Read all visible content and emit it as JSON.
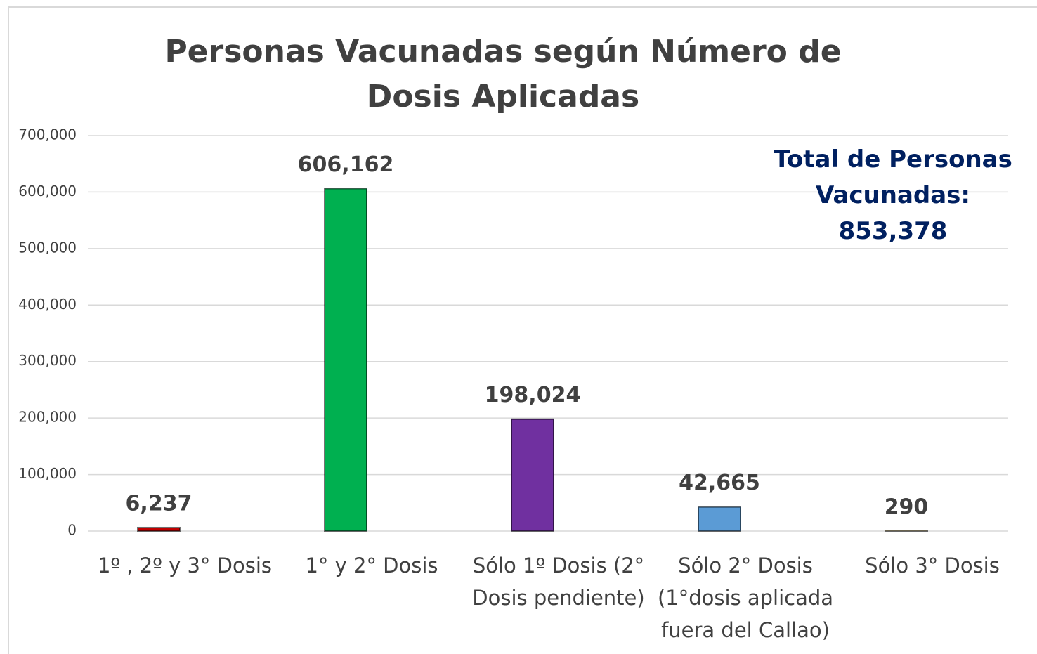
{
  "chart_data": {
    "type": "bar",
    "title": "Personas Vacunadas según  Número de Dosis Aplicadas",
    "annotation": "Total de Personas Vacunadas: 853,378",
    "categories": [
      "1º , 2º y 3° Dosis",
      "1° y 2° Dosis",
      "Sólo 1º Dosis (2° Dosis pendiente)",
      "Sólo 2° Dosis (1°dosis aplicada fuera del Callao)",
      "Sólo 3° Dosis"
    ],
    "values": [
      6237,
      606162,
      198024,
      42665,
      290
    ],
    "value_labels": [
      "6,237",
      "606,162",
      "198,024",
      "42,665",
      "290"
    ],
    "colors": [
      "#c00000",
      "#00b050",
      "#7030a0",
      "#5b9bd5",
      "#ffc000"
    ],
    "ylim": [
      0,
      700000
    ],
    "yticks": [
      0,
      {
        "value": 100000,
        "label": "100,000"
      },
      {
        "value": 200000,
        "label": "200,000"
      },
      {
        "value": 300000,
        "label": "300,000"
      },
      {
        "value": 400000,
        "label": "400,000"
      },
      {
        "value": 500000,
        "label": "500,000"
      },
      {
        "value": 600000,
        "label": "600,000"
      },
      {
        "value": 700000,
        "label": "700,000"
      }
    ],
    "grid": true
  }
}
